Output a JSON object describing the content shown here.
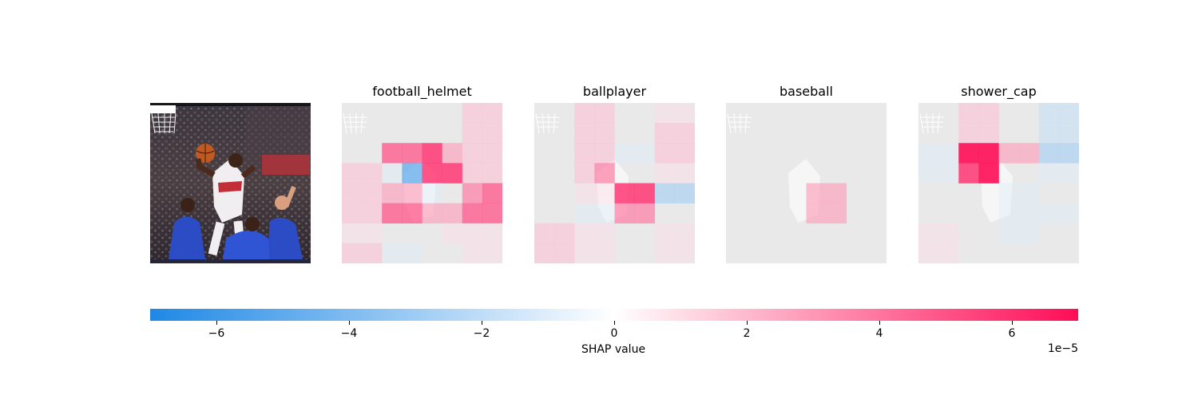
{
  "chart_data": {
    "type": "heatmap",
    "colormap": {
      "negative": "#1e88e5",
      "zero": "#ffffff",
      "positive": "#ff0d57"
    },
    "vmin": -7,
    "vmax": 7,
    "panels": [
      {
        "title": "football_helmet",
        "grid": [
          [
            0,
            0,
            0,
            0,
            0,
            0,
            2,
            2
          ],
          [
            0,
            0,
            0,
            0,
            0,
            0,
            2,
            2
          ],
          [
            0,
            0,
            5,
            5,
            6,
            3,
            2,
            2
          ],
          [
            2,
            2,
            -1,
            -5,
            6,
            6,
            2,
            2
          ],
          [
            2,
            2,
            3,
            3,
            -1,
            0,
            4,
            5
          ],
          [
            2,
            2,
            5,
            5,
            3,
            3,
            5,
            5
          ],
          [
            1,
            1,
            0,
            0,
            0,
            1,
            1,
            1
          ],
          [
            2,
            2,
            -1,
            -1,
            0,
            0,
            1,
            1
          ]
        ]
      },
      {
        "title": "ballplayer",
        "grid": [
          [
            0,
            0,
            2,
            2,
            0,
            0,
            1,
            1
          ],
          [
            0,
            0,
            2,
            2,
            0,
            0,
            2,
            2
          ],
          [
            0,
            0,
            2,
            2,
            -1,
            -1,
            2,
            2
          ],
          [
            0,
            0,
            2,
            4,
            0,
            0,
            1,
            1
          ],
          [
            0,
            0,
            1,
            1,
            6,
            6,
            -3,
            -3
          ],
          [
            0,
            0,
            -1,
            -1,
            4,
            4,
            0,
            0
          ],
          [
            2,
            2,
            1,
            1,
            0,
            0,
            1,
            1
          ],
          [
            2,
            2,
            1,
            1,
            0,
            0,
            1,
            1
          ]
        ]
      },
      {
        "title": "baseball",
        "grid": [
          [
            0,
            0,
            0,
            0,
            0,
            0,
            0,
            0
          ],
          [
            0,
            0,
            0,
            0,
            0,
            0,
            0,
            0
          ],
          [
            0,
            0,
            0,
            0,
            0,
            0,
            0,
            0
          ],
          [
            0,
            0,
            0,
            0,
            0,
            0,
            0,
            0
          ],
          [
            0,
            0,
            0,
            0,
            3,
            3,
            0,
            0
          ],
          [
            0,
            0,
            0,
            0,
            3,
            3,
            0,
            0
          ],
          [
            0,
            0,
            0,
            0,
            0,
            0,
            0,
            0
          ],
          [
            0,
            0,
            0,
            0,
            0,
            0,
            0,
            0
          ]
        ]
      },
      {
        "title": "shower_cap",
        "grid": [
          [
            0,
            0,
            2,
            2,
            0,
            0,
            -2,
            -2
          ],
          [
            0,
            0,
            2,
            2,
            0,
            0,
            -2,
            -2
          ],
          [
            -1,
            -1,
            7,
            7,
            3,
            3,
            -3,
            -3
          ],
          [
            -1,
            -1,
            6,
            7,
            0,
            0,
            -1,
            -1
          ],
          [
            0,
            0,
            0,
            0,
            -1,
            -1,
            0,
            0
          ],
          [
            0,
            0,
            0,
            0,
            -1,
            -1,
            -1,
            -1
          ],
          [
            1,
            1,
            0,
            0,
            -1,
            -1,
            0,
            0
          ],
          [
            1,
            1,
            0,
            0,
            0,
            0,
            0,
            0
          ]
        ]
      }
    ],
    "colorbar": {
      "ticks": [
        -6,
        -4,
        -2,
        0,
        2,
        4,
        6
      ],
      "tick_labels": [
        "−6",
        "−4",
        "−2",
        "0",
        "2",
        "4",
        "6"
      ],
      "label": "SHAP value",
      "offset_text": "1e−5"
    }
  }
}
